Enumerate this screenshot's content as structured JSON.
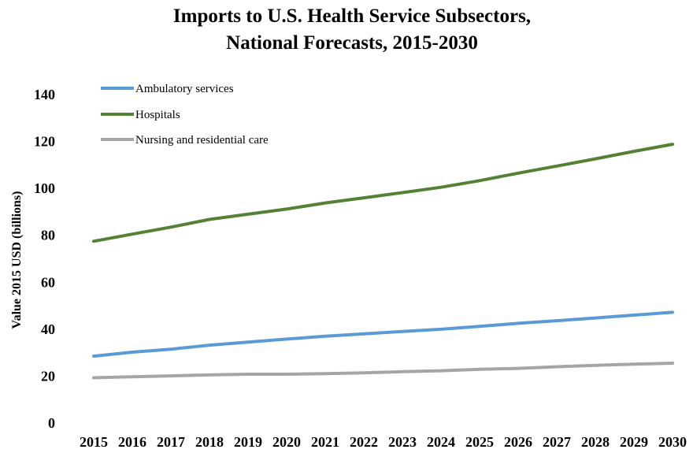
{
  "chart_data": {
    "type": "line",
    "title": "Imports to U.S. Health Service Subsectors,",
    "subtitle": "National Forecasts, 2015-2030",
    "xlabel": "",
    "ylabel": "Value 2015 USD (billions)",
    "ylim": [
      0,
      140
    ],
    "yticks": [
      "0",
      "20",
      "40",
      "60",
      "80",
      "100",
      "120",
      "140"
    ],
    "categories": [
      "2015",
      "2016",
      "2017",
      "2018",
      "2019",
      "2020",
      "2021",
      "2022",
      "2023",
      "2024",
      "2025",
      "2026",
      "2027",
      "2028",
      "2029",
      "2030"
    ],
    "grid": false,
    "legend_position": "top-left",
    "series": [
      {
        "name": "Ambulatory services",
        "color": "#5b9bd5",
        "values": [
          28.5,
          30.2,
          31.5,
          33.2,
          34.5,
          35.8,
          37.0,
          38.0,
          39.0,
          40.0,
          41.2,
          42.5,
          43.6,
          44.8,
          46.0,
          47.2
        ]
      },
      {
        "name": "Hospitals",
        "color": "#548235",
        "values": [
          77.5,
          80.5,
          83.5,
          86.8,
          89.0,
          91.2,
          93.8,
          96.0,
          98.2,
          100.5,
          103.3,
          106.5,
          109.5,
          112.6,
          115.8,
          118.8
        ]
      },
      {
        "name": "Nursing and residential care",
        "color": "#a5a5a5",
        "values": [
          19.3,
          19.7,
          20.1,
          20.5,
          20.8,
          20.8,
          21.1,
          21.4,
          21.9,
          22.3,
          22.9,
          23.3,
          24.0,
          24.6,
          25.1,
          25.5
        ]
      }
    ]
  }
}
